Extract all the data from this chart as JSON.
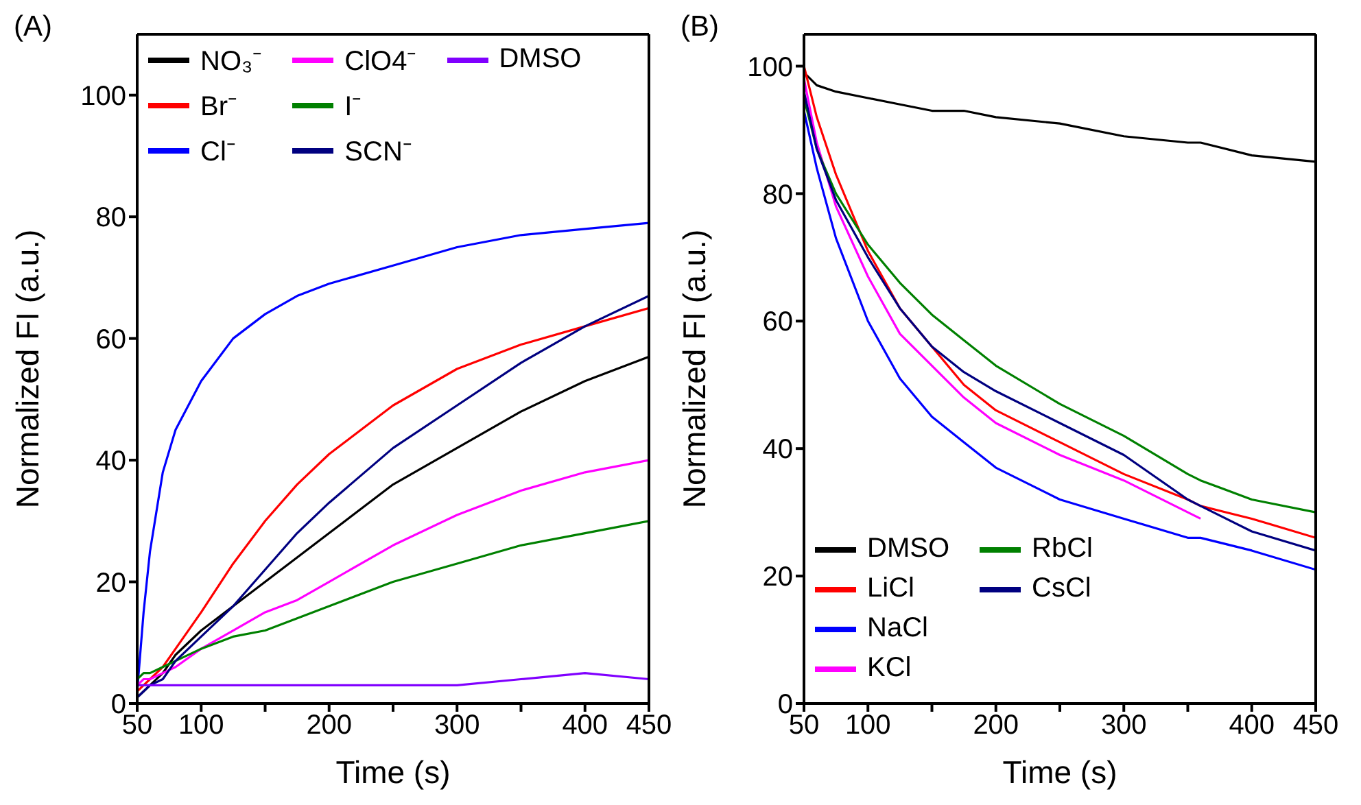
{
  "chart_data": [
    {
      "type": "line",
      "title": "(A)",
      "xlabel": "Time (s)",
      "ylabel": "Normalized FI (a.u.)",
      "xlim": [
        50,
        450
      ],
      "ylim": [
        0,
        110
      ],
      "xticks": [
        50,
        100,
        {
          "value": 150,
          "label": null
        },
        200,
        {
          "value": 250,
          "label": null
        },
        300,
        {
          "value": 350,
          "label": null
        },
        400,
        450
      ],
      "yticks": [
        0,
        20,
        40,
        60,
        80,
        100
      ],
      "legend": "top left",
      "x": [
        50,
        55,
        60,
        70,
        80,
        100,
        125,
        150,
        175,
        200,
        250,
        300,
        350,
        400,
        450
      ],
      "series": [
        {
          "name": "NO₃⁻",
          "color": "#000000",
          "values": [
            1,
            2,
            3,
            5,
            8,
            12,
            16,
            20,
            24,
            28,
            36,
            42,
            48,
            53,
            57
          ]
        },
        {
          "name": "Br⁻",
          "color": "#ff0000",
          "values": [
            2,
            3,
            4,
            6,
            9,
            15,
            23,
            30,
            36,
            41,
            49,
            55,
            59,
            62,
            65
          ]
        },
        {
          "name": "Cl⁻",
          "color": "#0000ff",
          "values": [
            2,
            15,
            25,
            38,
            45,
            53,
            60,
            64,
            67,
            69,
            72,
            75,
            77,
            78,
            79
          ]
        },
        {
          "name": "ClO4⁻",
          "color": "#ff00ff",
          "values": [
            3,
            4,
            4,
            5,
            6,
            9,
            12,
            15,
            17,
            20,
            26,
            31,
            35,
            38,
            40
          ]
        },
        {
          "name": "I⁻",
          "color": "#008000",
          "values": [
            4,
            5,
            5,
            6,
            7,
            9,
            11,
            12,
            14,
            16,
            20,
            23,
            26,
            28,
            30
          ]
        },
        {
          "name": "SCN⁻",
          "color": "#000080",
          "values": [
            1,
            2,
            3,
            4,
            7,
            11,
            16,
            22,
            28,
            33,
            42,
            49,
            56,
            62,
            67
          ]
        },
        {
          "name": "DMSO",
          "color": "#8000ff",
          "values": [
            3,
            3,
            3,
            3,
            3,
            3,
            3,
            3,
            3,
            3,
            3,
            3,
            4,
            5,
            4
          ]
        }
      ]
    },
    {
      "type": "line",
      "title": "(B)",
      "xlabel": "Time (s)",
      "ylabel": "Normalized FI (a.u.)",
      "xlim": [
        50,
        450
      ],
      "ylim": [
        0,
        105
      ],
      "xticks": [
        50,
        100,
        {
          "value": 150,
          "label": null
        },
        200,
        {
          "value": 250,
          "label": null
        },
        300,
        {
          "value": 350,
          "label": null
        },
        400,
        450
      ],
      "yticks": [
        0,
        20,
        40,
        60,
        80,
        100
      ],
      "legend": "bottom left",
      "x": [
        50,
        60,
        75,
        100,
        125,
        150,
        175,
        200,
        250,
        300,
        350,
        360,
        400,
        450
      ],
      "series": [
        {
          "name": "DMSO",
          "color": "#000000",
          "values": [
            99,
            97,
            96,
            95,
            94,
            93,
            93,
            92,
            91,
            89,
            88,
            88,
            86,
            85
          ]
        },
        {
          "name": "LiCl",
          "color": "#ff0000",
          "values": [
            100,
            92,
            83,
            71,
            62,
            56,
            50,
            46,
            41,
            36,
            32,
            31,
            29,
            26
          ]
        },
        {
          "name": "NaCl",
          "color": "#0000ff",
          "values": [
            93,
            84,
            73,
            60,
            51,
            45,
            41,
            37,
            32,
            29,
            26,
            26,
            24,
            21
          ]
        },
        {
          "name": "KCl",
          "color": "#ff00ff",
          "values": [
            98,
            88,
            78,
            67,
            58,
            53,
            48,
            44,
            39,
            35,
            30,
            29,
            null,
            null
          ]
        },
        {
          "name": "RbCl",
          "color": "#008000",
          "values": [
            95,
            87,
            80,
            72,
            66,
            61,
            57,
            53,
            47,
            42,
            36,
            35,
            32,
            30
          ]
        },
        {
          "name": "CsCl",
          "color": "#000080",
          "values": [
            96,
            87,
            79,
            70,
            62,
            56,
            52,
            49,
            44,
            39,
            32,
            31,
            27,
            24
          ]
        }
      ]
    }
  ]
}
